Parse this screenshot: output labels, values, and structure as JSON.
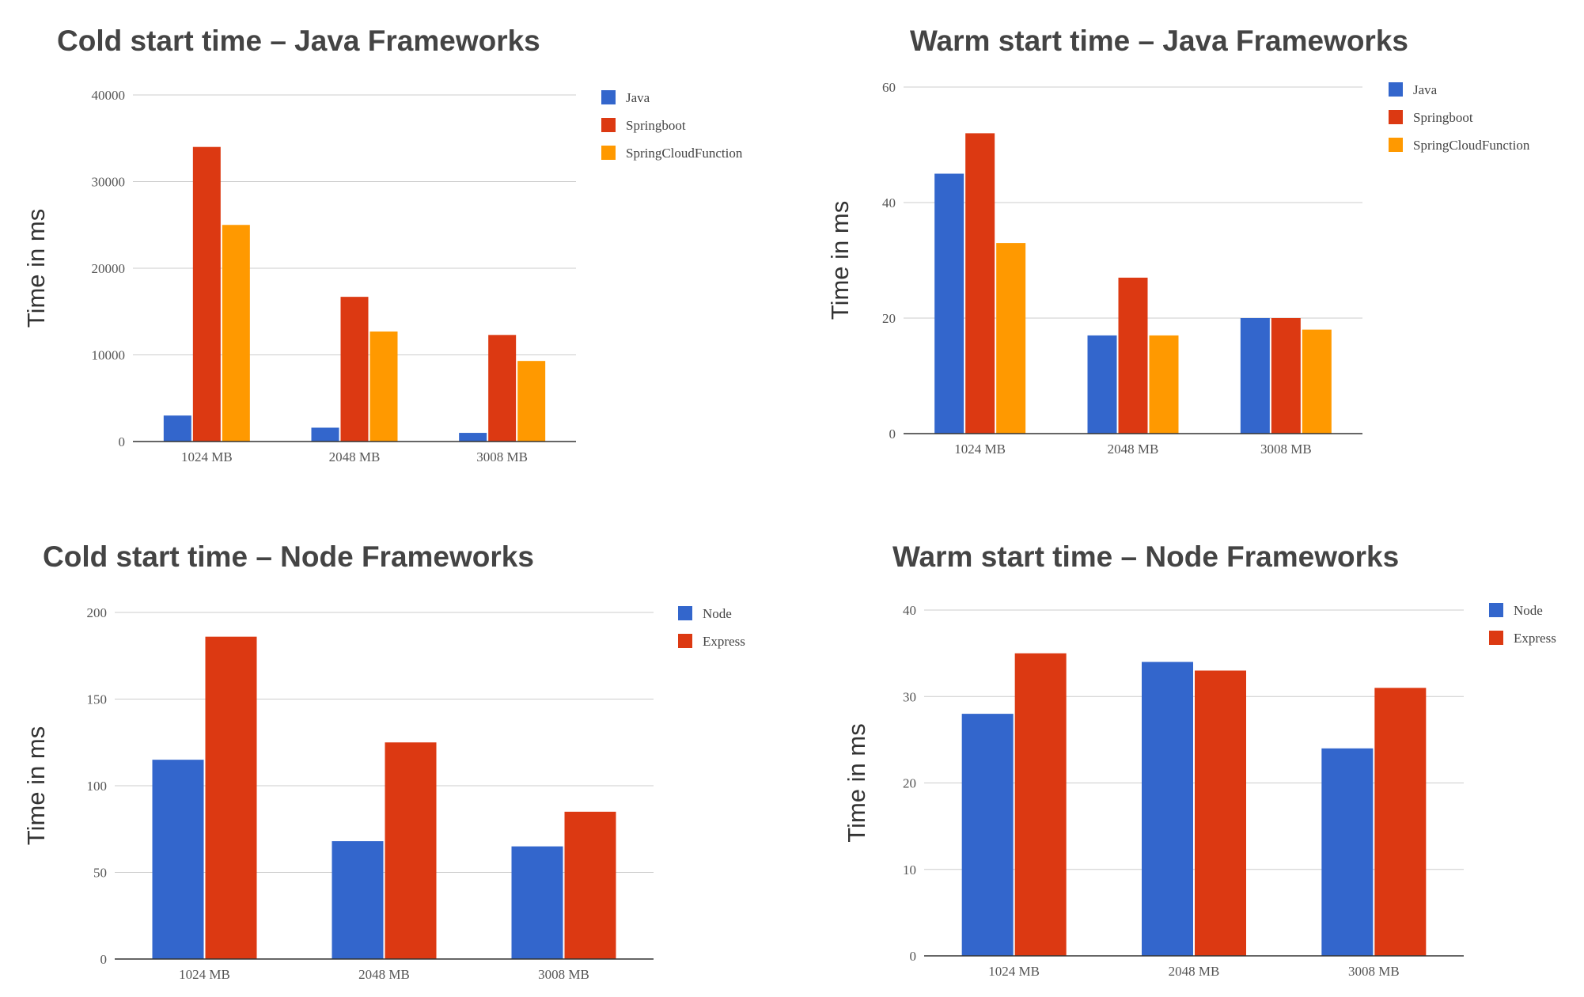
{
  "colors": {
    "java": "#3366CC",
    "springboot": "#DC3912",
    "springcloudfunction": "#FF9900",
    "node": "#3366CC",
    "express": "#DC3912",
    "grid": "#cccccc",
    "axis": "#333333"
  },
  "chart_data": [
    {
      "id": "cold-java",
      "type": "bar",
      "title": "Cold start time – Java Frameworks",
      "ylabel": "Time in ms",
      "xlabel": "",
      "categories": [
        "1024 MB",
        "2048 MB",
        "3008 MB"
      ],
      "ylim": [
        0,
        40000
      ],
      "yticks": [
        0,
        10000,
        20000,
        30000,
        40000
      ],
      "grid": true,
      "legend_position": "right",
      "series": [
        {
          "name": "Java",
          "color": "#3366CC",
          "values": [
            3000,
            1600,
            1000
          ]
        },
        {
          "name": "Springboot",
          "color": "#DC3912",
          "values": [
            34000,
            16700,
            12300
          ]
        },
        {
          "name": "SpringCloudFunction",
          "color": "#FF9900",
          "values": [
            25000,
            12700,
            9300
          ]
        }
      ]
    },
    {
      "id": "warm-java",
      "type": "bar",
      "title": "Warm start time – Java Frameworks",
      "ylabel": "Time in ms",
      "xlabel": "",
      "categories": [
        "1024 MB",
        "2048 MB",
        "3008 MB"
      ],
      "ylim": [
        0,
        60
      ],
      "yticks": [
        0,
        20,
        40,
        60
      ],
      "grid": true,
      "legend_position": "right",
      "series": [
        {
          "name": "Java",
          "color": "#3366CC",
          "values": [
            45,
            17,
            20
          ]
        },
        {
          "name": "Springboot",
          "color": "#DC3912",
          "values": [
            52,
            27,
            20
          ]
        },
        {
          "name": "SpringCloudFunction",
          "color": "#FF9900",
          "values": [
            33,
            17,
            18
          ]
        }
      ]
    },
    {
      "id": "cold-node",
      "type": "bar",
      "title": "Cold start time – Node Frameworks",
      "ylabel": "Time in ms",
      "xlabel": "",
      "categories": [
        "1024 MB",
        "2048 MB",
        "3008 MB"
      ],
      "ylim": [
        0,
        200
      ],
      "yticks": [
        0,
        50,
        100,
        150,
        200
      ],
      "grid": true,
      "legend_position": "right",
      "series": [
        {
          "name": "Node",
          "color": "#3366CC",
          "values": [
            115,
            68,
            65
          ]
        },
        {
          "name": "Express",
          "color": "#DC3912",
          "values": [
            186,
            125,
            85
          ]
        }
      ]
    },
    {
      "id": "warm-node",
      "type": "bar",
      "title": "Warm start time – Node Frameworks",
      "ylabel": "Time in ms",
      "xlabel": "",
      "categories": [
        "1024 MB",
        "2048 MB",
        "3008 MB"
      ],
      "ylim": [
        0,
        40
      ],
      "yticks": [
        0,
        10,
        20,
        30,
        40
      ],
      "grid": true,
      "legend_position": "right",
      "series": [
        {
          "name": "Node",
          "color": "#3366CC",
          "values": [
            28,
            34,
            24
          ]
        },
        {
          "name": "Express",
          "color": "#DC3912",
          "values": [
            35,
            33,
            31
          ]
        }
      ]
    }
  ]
}
